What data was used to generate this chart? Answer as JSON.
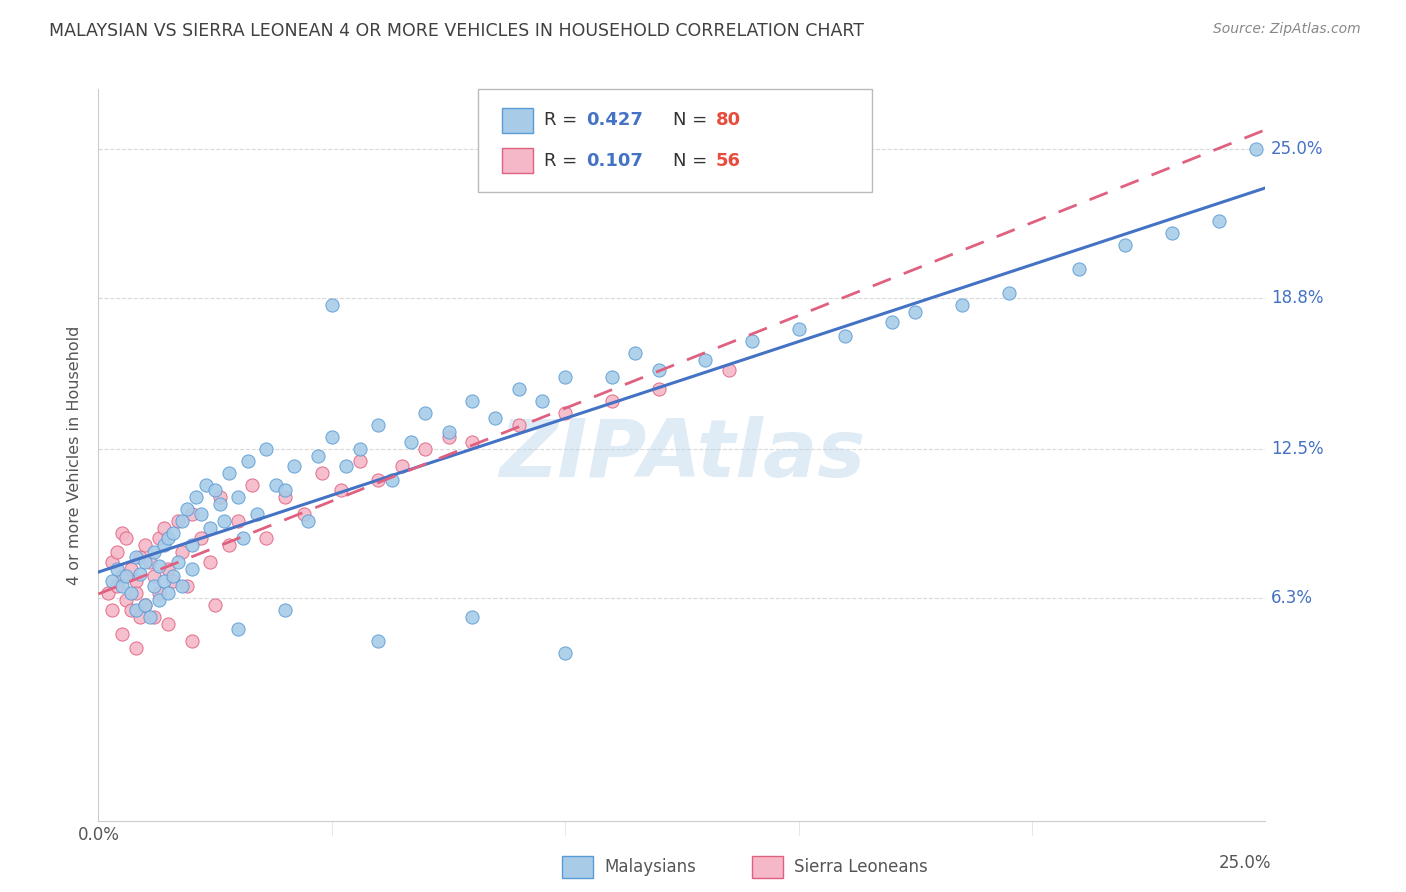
{
  "title": "MALAYSIAN VS SIERRA LEONEAN 4 OR MORE VEHICLES IN HOUSEHOLD CORRELATION CHART",
  "source": "Source: ZipAtlas.com",
  "ylabel": "4 or more Vehicles in Household",
  "ytick_labels": [
    "6.3%",
    "12.5%",
    "18.8%",
    "25.0%"
  ],
  "ytick_values": [
    0.063,
    0.125,
    0.188,
    0.25
  ],
  "xlim": [
    0.0,
    0.25
  ],
  "ylim": [
    -0.03,
    0.275
  ],
  "watermark": "ZIPAtlas",
  "blue_color": "#a8cce8",
  "blue_edge_color": "#5b9bd5",
  "pink_color": "#f4b8c8",
  "pink_edge_color": "#e06080",
  "blue_line_color": "#4472c4",
  "pink_line_color": "#e06080",
  "title_color": "#404040",
  "source_color": "#888888",
  "r_value_color": "#4472c4",
  "n_value_color": "#e74c3c",
  "malaysian_x": [
    0.003,
    0.004,
    0.005,
    0.006,
    0.007,
    0.008,
    0.008,
    0.009,
    0.01,
    0.01,
    0.011,
    0.012,
    0.012,
    0.013,
    0.013,
    0.014,
    0.014,
    0.015,
    0.015,
    0.016,
    0.016,
    0.017,
    0.018,
    0.018,
    0.019,
    0.02,
    0.02,
    0.021,
    0.022,
    0.023,
    0.024,
    0.025,
    0.026,
    0.027,
    0.028,
    0.03,
    0.031,
    0.032,
    0.034,
    0.036,
    0.038,
    0.04,
    0.042,
    0.045,
    0.047,
    0.05,
    0.053,
    0.056,
    0.06,
    0.063,
    0.067,
    0.07,
    0.075,
    0.08,
    0.085,
    0.09,
    0.095,
    0.1,
    0.11,
    0.115,
    0.12,
    0.13,
    0.14,
    0.15,
    0.16,
    0.17,
    0.175,
    0.185,
    0.195,
    0.21,
    0.22,
    0.23,
    0.24,
    0.248,
    0.03,
    0.04,
    0.06,
    0.08,
    0.1,
    0.05
  ],
  "malaysian_y": [
    0.07,
    0.075,
    0.068,
    0.072,
    0.065,
    0.08,
    0.058,
    0.073,
    0.06,
    0.078,
    0.055,
    0.082,
    0.068,
    0.076,
    0.062,
    0.085,
    0.07,
    0.088,
    0.065,
    0.09,
    0.072,
    0.078,
    0.095,
    0.068,
    0.1,
    0.085,
    0.075,
    0.105,
    0.098,
    0.11,
    0.092,
    0.108,
    0.102,
    0.095,
    0.115,
    0.105,
    0.088,
    0.12,
    0.098,
    0.125,
    0.11,
    0.108,
    0.118,
    0.095,
    0.122,
    0.13,
    0.118,
    0.125,
    0.135,
    0.112,
    0.128,
    0.14,
    0.132,
    0.145,
    0.138,
    0.15,
    0.145,
    0.155,
    0.155,
    0.165,
    0.158,
    0.162,
    0.17,
    0.175,
    0.172,
    0.178,
    0.182,
    0.185,
    0.19,
    0.2,
    0.21,
    0.215,
    0.22,
    0.25,
    0.05,
    0.058,
    0.045,
    0.055,
    0.04,
    0.185
  ],
  "sierraleonean_x": [
    0.002,
    0.003,
    0.003,
    0.004,
    0.004,
    0.005,
    0.005,
    0.006,
    0.006,
    0.007,
    0.007,
    0.008,
    0.008,
    0.009,
    0.009,
    0.01,
    0.01,
    0.011,
    0.012,
    0.013,
    0.013,
    0.014,
    0.015,
    0.016,
    0.017,
    0.018,
    0.019,
    0.02,
    0.022,
    0.024,
    0.026,
    0.028,
    0.03,
    0.033,
    0.036,
    0.04,
    0.044,
    0.048,
    0.052,
    0.056,
    0.06,
    0.065,
    0.07,
    0.075,
    0.08,
    0.09,
    0.1,
    0.11,
    0.12,
    0.135,
    0.005,
    0.008,
    0.012,
    0.015,
    0.02,
    0.025
  ],
  "sierraleonean_y": [
    0.065,
    0.078,
    0.058,
    0.082,
    0.068,
    0.09,
    0.072,
    0.062,
    0.088,
    0.058,
    0.075,
    0.07,
    0.065,
    0.08,
    0.055,
    0.085,
    0.06,
    0.078,
    0.072,
    0.088,
    0.065,
    0.092,
    0.075,
    0.07,
    0.095,
    0.082,
    0.068,
    0.098,
    0.088,
    0.078,
    0.105,
    0.085,
    0.095,
    0.11,
    0.088,
    0.105,
    0.098,
    0.115,
    0.108,
    0.12,
    0.112,
    0.118,
    0.125,
    0.13,
    0.128,
    0.135,
    0.14,
    0.145,
    0.15,
    0.158,
    0.048,
    0.042,
    0.055,
    0.052,
    0.045,
    0.06
  ]
}
